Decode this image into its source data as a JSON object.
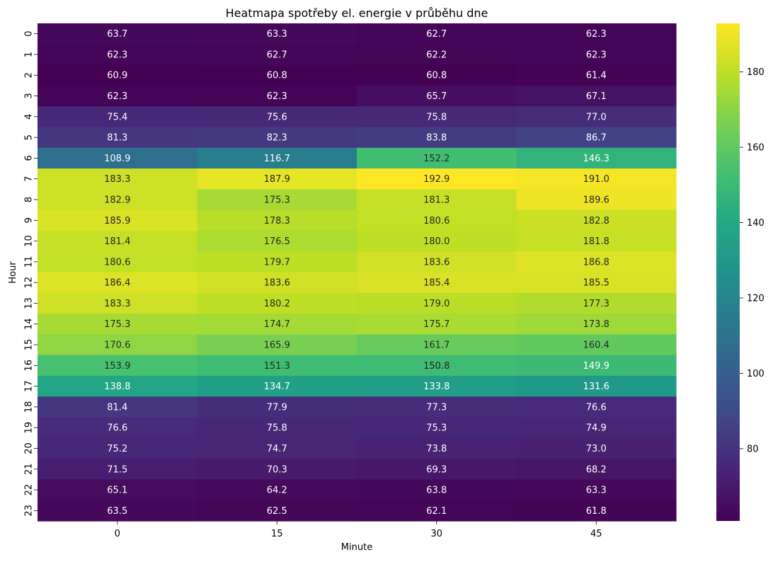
{
  "chart_data": {
    "type": "heatmap",
    "title": "Heatmapa spotřeby el. energie v průběhu dne",
    "xlabel": "Minute",
    "ylabel": "Hour",
    "x_categories": [
      "0",
      "15",
      "30",
      "45"
    ],
    "y_categories": [
      "0",
      "1",
      "2",
      "3",
      "4",
      "5",
      "6",
      "7",
      "8",
      "9",
      "10",
      "11",
      "12",
      "13",
      "14",
      "15",
      "16",
      "17",
      "18",
      "19",
      "20",
      "21",
      "22",
      "23"
    ],
    "values": [
      [
        63.7,
        63.3,
        62.7,
        62.3
      ],
      [
        62.3,
        62.7,
        62.2,
        62.3
      ],
      [
        60.9,
        60.8,
        60.8,
        61.4
      ],
      [
        62.3,
        62.3,
        65.7,
        67.1
      ],
      [
        75.4,
        75.6,
        75.8,
        77.0
      ],
      [
        81.3,
        82.3,
        83.8,
        86.7
      ],
      [
        108.9,
        116.7,
        152.2,
        146.3
      ],
      [
        183.3,
        187.9,
        192.9,
        191.0
      ],
      [
        182.9,
        175.3,
        181.3,
        189.6
      ],
      [
        185.9,
        178.3,
        180.6,
        182.8
      ],
      [
        181.4,
        176.5,
        180.0,
        181.8
      ],
      [
        180.6,
        179.7,
        183.6,
        186.8
      ],
      [
        186.4,
        183.6,
        185.4,
        185.5
      ],
      [
        183.3,
        180.2,
        179.0,
        177.3
      ],
      [
        175.3,
        174.7,
        175.7,
        173.8
      ],
      [
        170.6,
        165.9,
        161.7,
        160.4
      ],
      [
        153.9,
        151.3,
        150.8,
        149.9
      ],
      [
        138.8,
        134.7,
        133.8,
        131.6
      ],
      [
        81.4,
        77.9,
        77.3,
        76.6
      ],
      [
        76.6,
        75.8,
        75.3,
        74.9
      ],
      [
        75.2,
        74.7,
        73.8,
        73.0
      ],
      [
        71.5,
        70.3,
        69.3,
        68.2
      ],
      [
        65.1,
        64.2,
        63.8,
        63.3
      ],
      [
        63.5,
        62.5,
        62.1,
        61.8
      ]
    ],
    "value_format": "0.1f",
    "colormap": "viridis",
    "colorbar_ticks": [
      80,
      100,
      120,
      140,
      160,
      180
    ],
    "colorbar_range": [
      60.8,
      192.9
    ],
    "grid": false
  }
}
